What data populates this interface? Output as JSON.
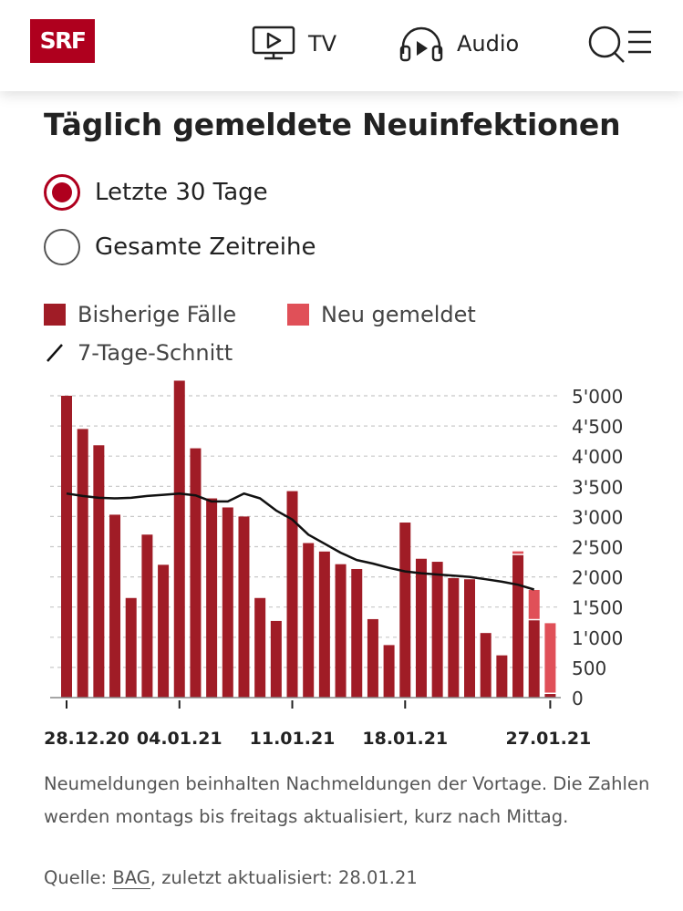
{
  "header": {
    "logo_text": "SRF",
    "nav_tv_label": "TV",
    "nav_audio_label": "Audio",
    "brand_color": "#af001e"
  },
  "title": "Täglich gemeldete Neuinfektionen",
  "filter": {
    "options": [
      {
        "label": "Letzte 30 Tage",
        "selected": true
      },
      {
        "label": "Gesamte Zeitreihe",
        "selected": false
      }
    ]
  },
  "legend": {
    "previous": "Bisherige Fälle",
    "new": "Neu gemeldet",
    "avg": "7-Tage-Schnitt"
  },
  "chart_data": {
    "type": "bar",
    "colors": {
      "previous": "#a01c26",
      "new": "#e05058",
      "avg": "#111111"
    },
    "y_ticks": [
      "5'000",
      "4'500",
      "4'000",
      "3'500",
      "3'000",
      "2'500",
      "2'000",
      "1'500",
      "1'000",
      "500",
      "0"
    ],
    "y_tick_values": [
      5000,
      4500,
      4000,
      3500,
      3000,
      2500,
      2000,
      1500,
      1000,
      500,
      0
    ],
    "ylim": [
      0,
      5300
    ],
    "x_tick_labels": [
      {
        "label": "28.12.20",
        "index": 0
      },
      {
        "label": "04.01.21",
        "index": 7
      },
      {
        "label": "11.01.21",
        "index": 14
      },
      {
        "label": "18.01.21",
        "index": 21
      },
      {
        "label": "27.01.21",
        "index": 30
      }
    ],
    "series": [
      {
        "name": "Bisherige Fälle",
        "values": [
          5000,
          4450,
          4180,
          3030,
          1650,
          2700,
          2200,
          5250,
          4130,
          3300,
          3150,
          3000,
          1650,
          1270,
          3420,
          2560,
          2420,
          2210,
          2130,
          1300,
          870,
          2900,
          2300,
          2250,
          1980,
          1960,
          1070,
          700,
          2360,
          1280,
          60
        ]
      },
      {
        "name": "Neu gemeldet",
        "values": [
          0,
          0,
          0,
          0,
          0,
          0,
          0,
          0,
          0,
          0,
          0,
          0,
          0,
          0,
          0,
          0,
          0,
          0,
          0,
          0,
          0,
          0,
          0,
          0,
          0,
          0,
          0,
          0,
          40,
          480,
          1150
        ]
      },
      {
        "name": "7-Tage-Schnitt",
        "values": [
          3380,
          3340,
          3310,
          3300,
          3310,
          3340,
          3360,
          3380,
          3350,
          3250,
          3250,
          3380,
          3300,
          3100,
          2950,
          2700,
          2550,
          2400,
          2280,
          2220,
          2150,
          2090,
          2060,
          2040,
          2020,
          2000,
          1960,
          1920,
          1870,
          1790,
          null
        ]
      }
    ]
  },
  "note": "Neumeldungen beinhalten Nachmeldungen der Vortage. Die Zahlen werden montags bis freitags aktualisiert, kurz nach Mittag.",
  "source": {
    "prefix": "Quelle: ",
    "link": "BAG",
    "suffix": ", zuletzt aktualisiert: 28.01.21"
  }
}
